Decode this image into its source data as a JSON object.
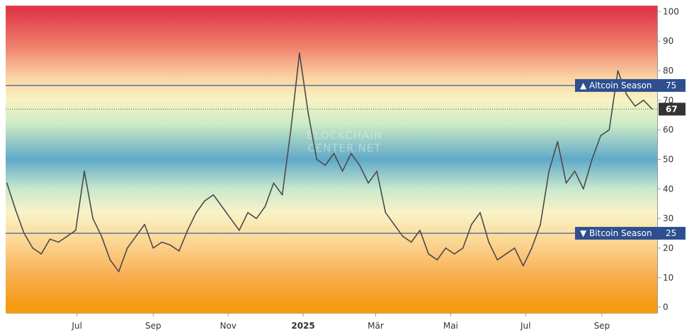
{
  "chart_data": {
    "type": "line",
    "title": "",
    "xlabel": "",
    "ylabel": "",
    "ylim": [
      -2,
      102
    ],
    "yticks": [
      0,
      10,
      20,
      30,
      40,
      50,
      60,
      70,
      80,
      90,
      100
    ],
    "x_tick_labels": [
      {
        "label": "Jul",
        "date": "2024-07-01",
        "bold": false
      },
      {
        "label": "Sep",
        "date": "2024-09-01",
        "bold": false
      },
      {
        "label": "Nov",
        "date": "2024-11-01",
        "bold": false
      },
      {
        "label": "2025",
        "date": "2025-01-01",
        "bold": true
      },
      {
        "label": "Mär",
        "date": "2025-03-01",
        "bold": false
      },
      {
        "label": "Mai",
        "date": "2025-05-01",
        "bold": false
      },
      {
        "label": "Jul",
        "date": "2025-07-01",
        "bold": false
      },
      {
        "label": "Sep",
        "date": "2025-09-01",
        "bold": false
      }
    ],
    "xlim": [
      "2024-05-04",
      "2025-10-16"
    ],
    "grid": false,
    "watermark": [
      "BLOCKCHAIN",
      "CENTER.NET"
    ],
    "series": [
      {
        "color": "#4a4a4a",
        "x": [
          "2024-05-05",
          "2024-05-12",
          "2024-05-19",
          "2024-05-26",
          "2024-06-02",
          "2024-06-09",
          "2024-06-16",
          "2024-06-23",
          "2024-06-30",
          "2024-07-07",
          "2024-07-14",
          "2024-07-21",
          "2024-07-28",
          "2024-08-04",
          "2024-08-11",
          "2024-08-18",
          "2024-08-25",
          "2024-09-01",
          "2024-09-08",
          "2024-09-15",
          "2024-09-22",
          "2024-09-29",
          "2024-10-06",
          "2024-10-13",
          "2024-10-20",
          "2024-10-27",
          "2024-11-03",
          "2024-11-10",
          "2024-11-17",
          "2024-11-24",
          "2024-12-01",
          "2024-12-08",
          "2024-12-15",
          "2024-12-22",
          "2024-12-29",
          "2025-01-05",
          "2025-01-12",
          "2025-01-19",
          "2025-01-26",
          "2025-02-02",
          "2025-02-09",
          "2025-02-16",
          "2025-02-23",
          "2025-03-02",
          "2025-03-09",
          "2025-03-16",
          "2025-03-23",
          "2025-03-30",
          "2025-04-06",
          "2025-04-13",
          "2025-04-20",
          "2025-04-27",
          "2025-05-04",
          "2025-05-11",
          "2025-05-18",
          "2025-05-25",
          "2025-06-01",
          "2025-06-08",
          "2025-06-15",
          "2025-06-22",
          "2025-06-29",
          "2025-07-06",
          "2025-07-13",
          "2025-07-20",
          "2025-07-27",
          "2025-08-03",
          "2025-08-10",
          "2025-08-17",
          "2025-08-24",
          "2025-08-31",
          "2025-09-07",
          "2025-09-14",
          "2025-09-21",
          "2025-09-28",
          "2025-10-05",
          "2025-10-12"
        ],
        "values": [
          42,
          33,
          25,
          20,
          18,
          23,
          22,
          24,
          26,
          46,
          30,
          24,
          16,
          12,
          20,
          24,
          28,
          20,
          22,
          21,
          19,
          26,
          32,
          36,
          38,
          34,
          30,
          26,
          32,
          30,
          34,
          42,
          38,
          60,
          86,
          66,
          50,
          48,
          52,
          46,
          52,
          48,
          42,
          46,
          32,
          28,
          24,
          22,
          26,
          18,
          16,
          20,
          18,
          20,
          28,
          32,
          22,
          16,
          18,
          20,
          14,
          20,
          28,
          46,
          56,
          42,
          46,
          40,
          50,
          58,
          60,
          80,
          72,
          68,
          70,
          67
        ]
      }
    ],
    "reference_lines": [
      {
        "label": "▲ Altcoin Season",
        "value": 75,
        "color": "#2d4f8f"
      },
      {
        "label": "▼ Bitcoin Season",
        "value": 25,
        "color": "#2d4f8f"
      }
    ],
    "current_value": {
      "value": 67,
      "color": "#333333"
    },
    "background_gradient": [
      {
        "value": 100,
        "color": "#e03a4a"
      },
      {
        "value": 88,
        "color": "#f0816c"
      },
      {
        "value": 78,
        "color": "#fad2a2"
      },
      {
        "value": 70,
        "color": "#f7f3c2"
      },
      {
        "value": 62,
        "color": "#ccebc6"
      },
      {
        "value": 50,
        "color": "#5fa9c8"
      },
      {
        "value": 40,
        "color": "#c8e8cd"
      },
      {
        "value": 32,
        "color": "#f9f3c7"
      },
      {
        "value": 22,
        "color": "#fbd694"
      },
      {
        "value": 10,
        "color": "#f8ac4c"
      },
      {
        "value": 0,
        "color": "#f69a10"
      }
    ]
  }
}
